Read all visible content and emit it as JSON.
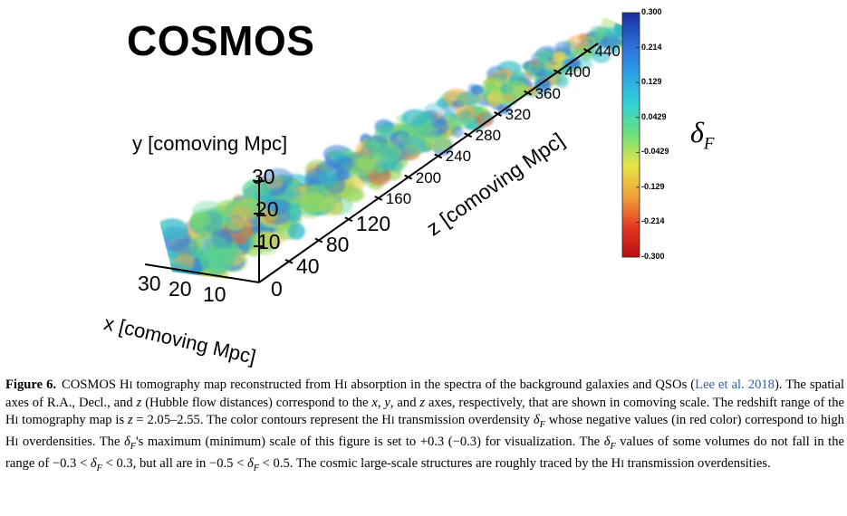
{
  "figure": {
    "title": "COSMOS",
    "y_axis_label": "y [comoving Mpc]",
    "x_axis_label": "x [comoving Mpc]",
    "z_axis_label": "z [comoving Mpc]",
    "y_ticks": [
      "30",
      "20",
      "10"
    ],
    "x_ticks": [
      "30",
      "20",
      "10"
    ],
    "origin_tick": "0",
    "z_ticks": [
      "40",
      "80",
      "120",
      "160",
      "200",
      "240",
      "280",
      "320",
      "360",
      "400",
      "440"
    ],
    "colorbar": {
      "label_symbol": "δ",
      "label_sub": "F",
      "ticks": [
        "0.300",
        "0.214",
        "0.129",
        "0.0429",
        "-0.0429",
        "-0.129",
        "-0.214",
        "-0.300"
      ],
      "colors": [
        "#1a2f9c",
        "#2d6ad6",
        "#2fa0e6",
        "#2fd3d3",
        "#6fe07a",
        "#e8e246",
        "#f0a33a",
        "#e33b24",
        "#b81010"
      ]
    },
    "volume_palette": [
      "#3a7fd6",
      "#2fb8c8",
      "#58d08e",
      "#9ad85b",
      "#e2d256",
      "#f0a64a",
      "#e56a3a"
    ]
  },
  "caption": {
    "label": "Figure 6.",
    "part1": "COSMOS H",
    "part1_sc": "I",
    "part2": " tomography map reconstructed from H",
    "part2_sc": "I",
    "part3": " absorption in the spectra of the background galaxies and QSOs (",
    "citation": "Lee et al. 2018",
    "part4": "). The spatial axes of R.A., Decl., and ",
    "part4_var": "z",
    "part5": " (Hubble flow distances) correspond to the ",
    "part5_var1": "x",
    "part5_sep1": ", ",
    "part5_var2": "y",
    "part5_sep2": ", and ",
    "part5_var3": "z",
    "part6": " axes, respectively, that are shown in comoving scale. The redshift range of the H",
    "part6_sc": "I",
    "part7": " tomography map is ",
    "part7_var": "z",
    "part7_val": " = 2.05–2.55. The color contours represent the H",
    "part7_sc": "I",
    "part8": " transmission overdensity ",
    "part8_var": "δ",
    "part8_sub": "F",
    "part9": " whose negative values (in red color) correspond to high H",
    "part9_sc": "I",
    "part10": " overdensities. The ",
    "part10_var": "δ",
    "part10_sub": "F",
    "part11": "'s maximum (minimum) scale of this figure is set to +0.3 (−0.3) for visualization. The ",
    "part11_var": "δ",
    "part11_sub": "F",
    "part12": " values of some volumes do not fall in the range of −0.3 < ",
    "part12_var": "δ",
    "part12_sub": "F",
    "part13": " < 0.3, but all are in −0.5 < ",
    "part13_var": "δ",
    "part13_sub": "F",
    "part14": " < 0.5. The cosmic large-scale structures are roughly traced by the H",
    "part14_sc": "I",
    "part15": " transmission overdensities."
  }
}
